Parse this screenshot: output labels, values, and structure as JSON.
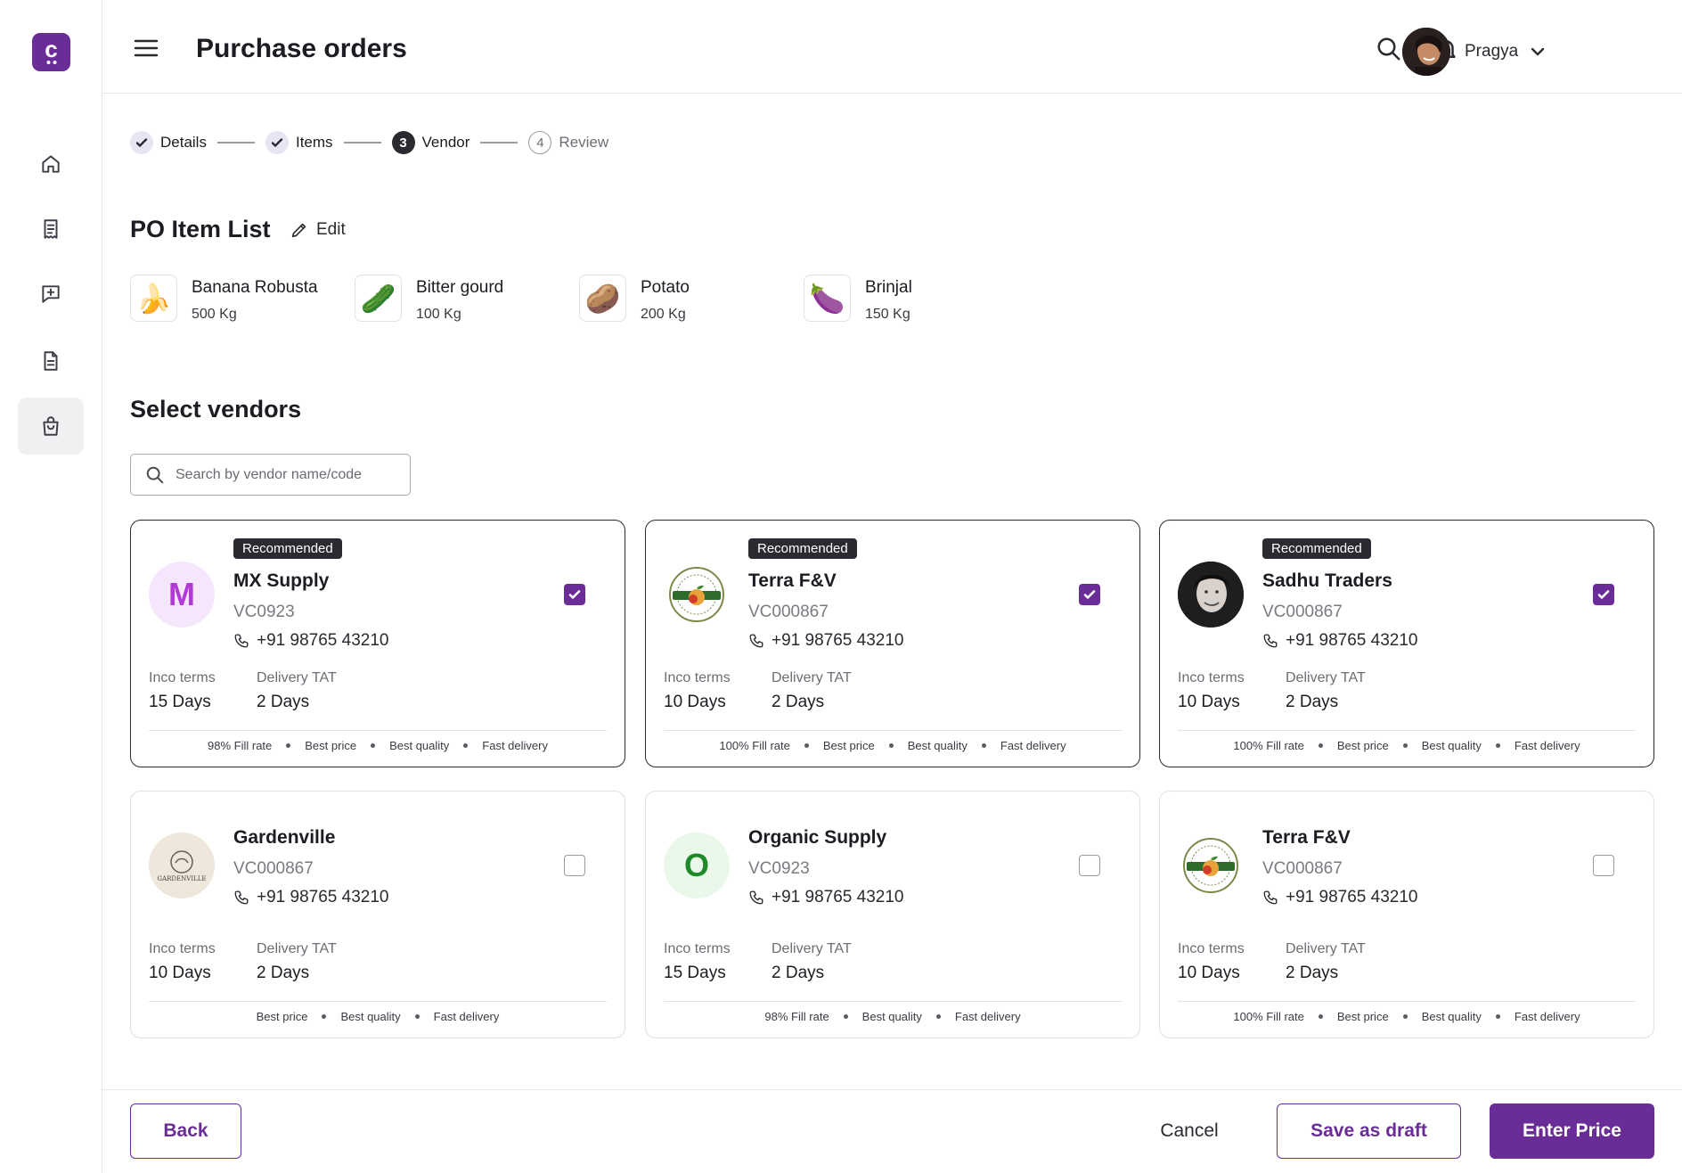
{
  "app": {
    "logo_letter": "c",
    "title": "Purchase orders"
  },
  "sidebar": {
    "items": [
      {
        "name": "home"
      },
      {
        "name": "receipt"
      },
      {
        "name": "message"
      },
      {
        "name": "document"
      },
      {
        "name": "bag",
        "active": true
      }
    ]
  },
  "user": {
    "name": "Pragya"
  },
  "stepper": {
    "steps": [
      {
        "label": "Details",
        "state": "done"
      },
      {
        "label": "Items",
        "state": "done"
      },
      {
        "number": "3",
        "label": "Vendor",
        "state": "current"
      },
      {
        "number": "4",
        "label": "Review",
        "state": "todo"
      }
    ]
  },
  "po_items": {
    "title": "PO Item List",
    "edit_label": "Edit",
    "items": [
      {
        "name": "Banana Robusta",
        "qty": "500 Kg",
        "icon": "🍌"
      },
      {
        "name": "Bitter gourd",
        "qty": "100 Kg",
        "icon": "🥒"
      },
      {
        "name": "Potato",
        "qty": "200 Kg",
        "icon": "🥔"
      },
      {
        "name": "Brinjal",
        "qty": "150 Kg",
        "icon": "🍆"
      }
    ]
  },
  "vendors": {
    "title": "Select vendors",
    "search_placeholder": "Search by vendor name/code",
    "inco_label": "Inco terms",
    "tat_label": "Delivery TAT",
    "badge_label": "Recommended",
    "cards": [
      {
        "name": "MX Supply",
        "code": "VC0923",
        "phone": "+91 98765 43210",
        "inco": "15 Days",
        "tat": "2 Days",
        "recommended": true,
        "selected": true,
        "avatar_type": "letter",
        "avatar_letter": "M",
        "avatar_color": "#b23ad6",
        "avatar_bg": "#f6e6fb",
        "tags": [
          "98% Fill rate",
          "Best price",
          "Best quality",
          "Fast delivery"
        ]
      },
      {
        "name": "Terra F&V",
        "code": "VC000867",
        "phone": "+91 98765 43210",
        "inco": "10 Days",
        "tat": "2 Days",
        "recommended": true,
        "selected": true,
        "avatar_type": "terra",
        "tags": [
          "100% Fill rate",
          "Best price",
          "Best quality",
          "Fast delivery"
        ]
      },
      {
        "name": "Sadhu Traders",
        "code": "VC000867",
        "phone": "+91 98765 43210",
        "inco": "10 Days",
        "tat": "2 Days",
        "recommended": true,
        "selected": true,
        "avatar_type": "photo",
        "tags": [
          "100% Fill rate",
          "Best price",
          "Best quality",
          "Fast delivery"
        ]
      },
      {
        "name": "Gardenville",
        "code": "VC000867",
        "phone": "+91 98765 43210",
        "inco": "10 Days",
        "tat": "2 Days",
        "recommended": false,
        "selected": false,
        "avatar_type": "gardenville",
        "avatar_text": "GARDENVILLE",
        "tags": [
          "Best price",
          "Best quality",
          "Fast delivery"
        ]
      },
      {
        "name": "Organic Supply",
        "code": "VC0923",
        "phone": "+91 98765 43210",
        "inco": "15 Days",
        "tat": "2 Days",
        "recommended": false,
        "selected": false,
        "avatar_type": "letter",
        "avatar_letter": "O",
        "avatar_color": "#1e8a2a",
        "avatar_bg": "#eaf8ea",
        "tags": [
          "98% Fill rate",
          "Best quality",
          "Fast delivery"
        ]
      },
      {
        "name": "Terra F&V",
        "code": "VC000867",
        "phone": "+91 98765 43210",
        "inco": "10 Days",
        "tat": "2 Days",
        "recommended": false,
        "selected": false,
        "avatar_type": "terra",
        "tags": [
          "100% Fill rate",
          "Best price",
          "Best quality",
          "Fast delivery"
        ]
      }
    ]
  },
  "footer": {
    "back_label": "Back",
    "cancel_label": "Cancel",
    "draft_label": "Save as draft",
    "primary_label": "Enter Price"
  },
  "colors": {
    "brand": "#6a2c96",
    "dark": "#2a2a30"
  }
}
